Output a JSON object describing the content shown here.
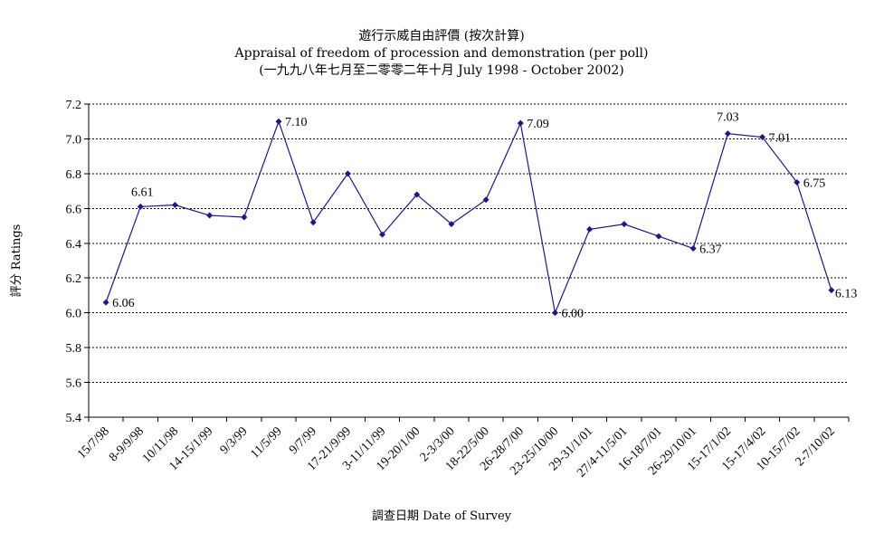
{
  "chart_data": {
    "type": "line",
    "title": "遊行示威自由評價 (按次計算)",
    "subtitle": "Appraisal of freedom of procession and demonstration (per poll)",
    "subtitle2": "(一九九八年七月至二零零二年十月 July 1998 - October 2002)",
    "xlabel": "調查日期 Date of Survey",
    "ylabel": "評分 Ratings",
    "ylim": [
      5.4,
      7.2
    ],
    "yticks": [
      "7.2",
      "7.0",
      "6.8",
      "6.6",
      "6.4",
      "6.2",
      "6.0",
      "5.8",
      "5.6",
      "5.4"
    ],
    "grid": "horizontal dotted",
    "series_color": "#1a1a80",
    "categories": [
      "15/7/98",
      "8-9/9/98",
      "10/11/98",
      "14-15/1/99",
      "9/3/99",
      "11/5/99",
      "9/7/99",
      "17-21/9/99",
      "3-11/11/99",
      "19-20/1/00",
      "2-3/3/00",
      "18-22/5/00",
      "26-28/7/00",
      "23-25/10/00",
      "29-31/1/01",
      "27/4-11/5/01",
      "16-18/7/01",
      "26-29/10/01",
      "15-17/1/02",
      "15-17/4/02",
      "10-15/7/02",
      "2-7/10/02"
    ],
    "points": [
      {
        "value": 6.06,
        "label": "6.06"
      },
      {
        "value": 6.61,
        "label": "6.61"
      },
      {
        "value": 6.62
      },
      {
        "value": 6.56
      },
      {
        "value": 6.55
      },
      {
        "value": 7.1,
        "label": "7.10"
      },
      {
        "value": 6.52
      },
      {
        "value": 6.8
      },
      {
        "value": 6.45
      },
      {
        "value": 6.68
      },
      {
        "value": 6.51
      },
      {
        "value": 6.65
      },
      {
        "value": 7.09,
        "label": "7.09"
      },
      {
        "value": 6.0,
        "label": "6.00"
      },
      {
        "value": 6.48
      },
      {
        "value": 6.51
      },
      {
        "value": 6.44
      },
      {
        "value": 6.37,
        "label": "6.37"
      },
      {
        "value": 7.03,
        "label": "7.03"
      },
      {
        "value": 7.01,
        "label": "7.01"
      },
      {
        "value": 6.75,
        "label": "6.75"
      },
      {
        "value": 6.13,
        "label": "6.13"
      }
    ]
  }
}
